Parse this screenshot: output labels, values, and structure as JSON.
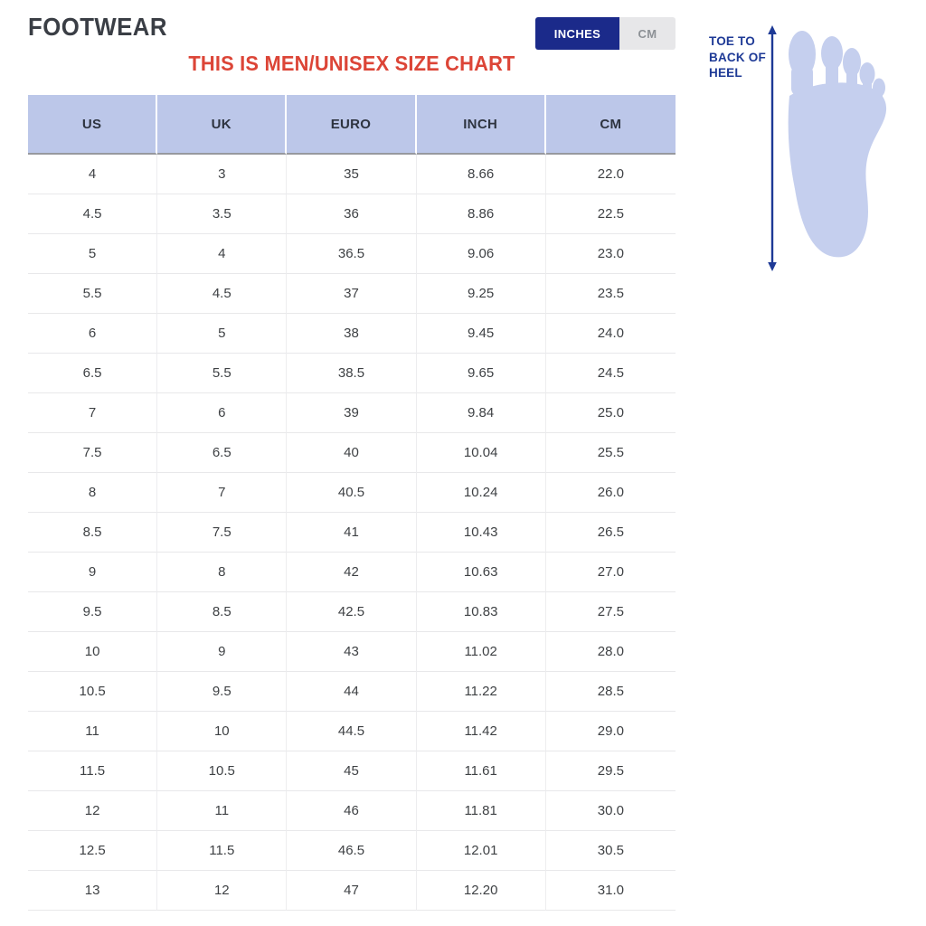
{
  "header": {
    "title": "FOOTWEAR",
    "unit_toggle": {
      "inches_label": "INCHES",
      "cm_label": "CM",
      "selected": "INCHES"
    },
    "chart_title": "THIS IS MEN/UNISEX SIZE CHART"
  },
  "size_table": {
    "columns": [
      "US",
      "UK",
      "EURO",
      "INCH",
      "CM"
    ],
    "rows": [
      [
        "4",
        "3",
        "35",
        "8.66",
        "22.0"
      ],
      [
        "4.5",
        "3.5",
        "36",
        "8.86",
        "22.5"
      ],
      [
        "5",
        "4",
        "36.5",
        "9.06",
        "23.0"
      ],
      [
        "5.5",
        "4.5",
        "37",
        "9.25",
        "23.5"
      ],
      [
        "6",
        "5",
        "38",
        "9.45",
        "24.0"
      ],
      [
        "6.5",
        "5.5",
        "38.5",
        "9.65",
        "24.5"
      ],
      [
        "7",
        "6",
        "39",
        "9.84",
        "25.0"
      ],
      [
        "7.5",
        "6.5",
        "40",
        "10.04",
        "25.5"
      ],
      [
        "8",
        "7",
        "40.5",
        "10.24",
        "26.0"
      ],
      [
        "8.5",
        "7.5",
        "41",
        "10.43",
        "26.5"
      ],
      [
        "9",
        "8",
        "42",
        "10.63",
        "27.0"
      ],
      [
        "9.5",
        "8.5",
        "42.5",
        "10.83",
        "27.5"
      ],
      [
        "10",
        "9",
        "43",
        "11.02",
        "28.0"
      ],
      [
        "10.5",
        "9.5",
        "44",
        "11.22",
        "28.5"
      ],
      [
        "11",
        "10",
        "44.5",
        "11.42",
        "29.0"
      ],
      [
        "11.5",
        "10.5",
        "45",
        "11.61",
        "29.5"
      ],
      [
        "12",
        "11",
        "46",
        "11.81",
        "30.0"
      ],
      [
        "12.5",
        "11.5",
        "46.5",
        "12.01",
        "30.5"
      ],
      [
        "13",
        "12",
        "47",
        "12.20",
        "31.0"
      ]
    ]
  },
  "measurement": {
    "text": "TOE TO BACK OF HEEL",
    "lines": [
      "TOE TO",
      "BACK OF",
      "HEEL"
    ]
  },
  "colors": {
    "accent_navy": "#1b2a8a",
    "label_navy": "#1e3a96",
    "heading_red": "#dc4537",
    "table_header_bg": "#bcc7e9",
    "toggle_inactive_bg": "#e7e7e9",
    "foot_fill": "#c5cfee"
  }
}
